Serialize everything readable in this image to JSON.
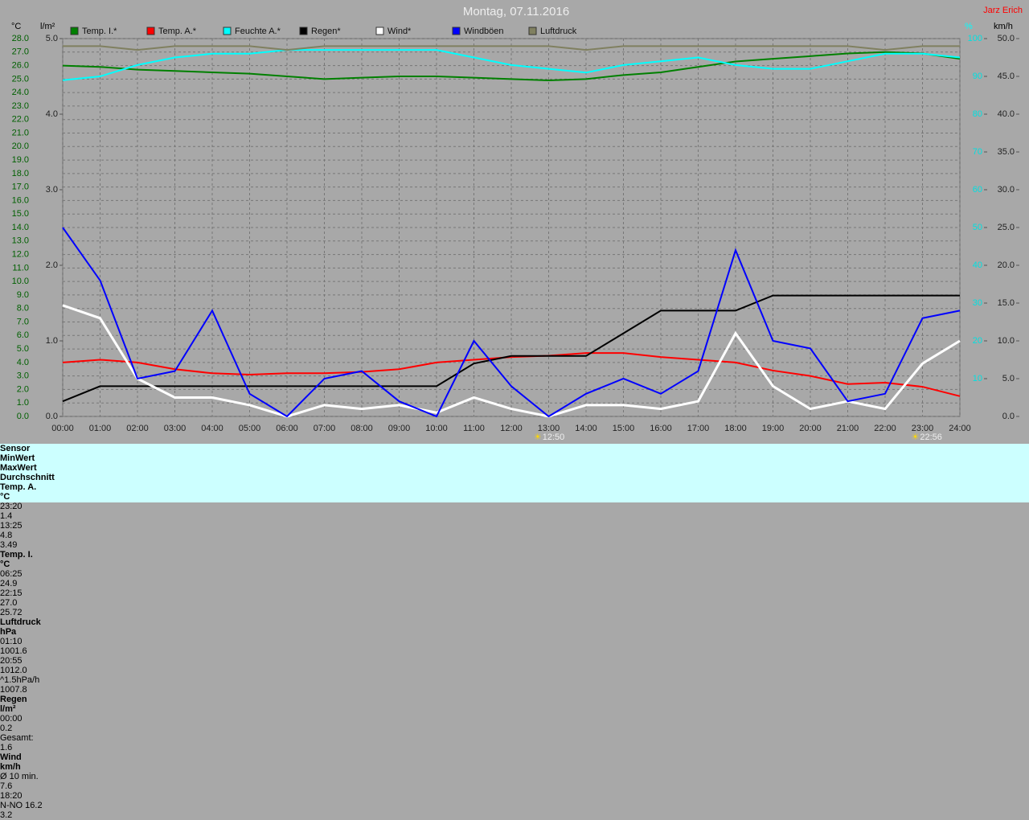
{
  "header": {
    "title": "Montag, 07.11.2016",
    "author": "Jarz Erich"
  },
  "chart_data": {
    "type": "line",
    "x": [
      "00:00",
      "01:00",
      "02:00",
      "03:00",
      "04:00",
      "05:00",
      "06:00",
      "07:00",
      "08:00",
      "09:00",
      "10:00",
      "11:00",
      "12:00",
      "13:00",
      "14:00",
      "15:00",
      "16:00",
      "17:00",
      "18:00",
      "19:00",
      "20:00",
      "21:00",
      "22:00",
      "23:00",
      "24:00"
    ],
    "ylabel": "°C",
    "y3label": "l/m²",
    "y4label": "%",
    "y2label": "km/h",
    "ylim": [
      0,
      28
    ],
    "yticks": [
      {
        "value": 0,
        "label": "0.0"
      },
      {
        "value": 1,
        "label": "1.0"
      },
      {
        "value": 2,
        "label": "2.0"
      },
      {
        "value": 3,
        "label": "3.0"
      },
      {
        "value": 4,
        "label": "4.0"
      },
      {
        "value": 5,
        "label": "5.0"
      },
      {
        "value": 6,
        "label": "6.0"
      },
      {
        "value": 7,
        "label": "7.0"
      },
      {
        "value": 8,
        "label": "8.0"
      },
      {
        "value": 9,
        "label": "9.0"
      },
      {
        "value": 10,
        "label": "10.0"
      },
      {
        "value": 11,
        "label": "11.0"
      },
      {
        "value": 12,
        "label": "12.0"
      },
      {
        "value": 13,
        "label": "13.0"
      },
      {
        "value": 14,
        "label": "14.0"
      },
      {
        "value": 15,
        "label": "15.0"
      },
      {
        "value": 16,
        "label": "16.0"
      },
      {
        "value": 17,
        "label": "17.0"
      },
      {
        "value": 18,
        "label": "18.0"
      },
      {
        "value": 19,
        "label": "19.0"
      },
      {
        "value": 20,
        "label": "20.0"
      },
      {
        "value": 21,
        "label": "21.0"
      },
      {
        "value": 22,
        "label": "22.0"
      },
      {
        "value": 23,
        "label": "23.0"
      },
      {
        "value": 24,
        "label": "24.0"
      },
      {
        "value": 25,
        "label": "25.0"
      },
      {
        "value": 26,
        "label": "26.0"
      },
      {
        "value": 27,
        "label": "27.0"
      },
      {
        "value": 28,
        "label": "28.0"
      }
    ],
    "y3lim": [
      0,
      5
    ],
    "y3ticks": [
      {
        "value": 0,
        "label": "0.0"
      },
      {
        "value": 1,
        "label": "1.0"
      },
      {
        "value": 2,
        "label": "2.0"
      },
      {
        "value": 3,
        "label": "3.0"
      },
      {
        "value": 4,
        "label": "4.0"
      },
      {
        "value": 5,
        "label": "5.0"
      }
    ],
    "y4lim": [
      0,
      100
    ],
    "y4ticks": [
      10,
      20,
      30,
      40,
      50,
      60,
      70,
      80,
      90,
      100
    ],
    "y2lim": [
      0,
      50
    ],
    "y2ticks": [
      {
        "value": 0,
        "label": "0.0"
      },
      {
        "value": 5,
        "label": "5.0"
      },
      {
        "value": 10,
        "label": "10.0"
      },
      {
        "value": 15,
        "label": "15.0"
      },
      {
        "value": 20,
        "label": "20.0"
      },
      {
        "value": 25,
        "label": "25.0"
      },
      {
        "value": 30,
        "label": "30.0"
      },
      {
        "value": 35,
        "label": "35.0"
      },
      {
        "value": 40,
        "label": "40.0"
      },
      {
        "value": 45,
        "label": "45.0"
      },
      {
        "value": 50,
        "label": "50.0"
      }
    ],
    "grid": true,
    "series": [
      {
        "name": "Temp. I.*",
        "color": "#008000",
        "axis": "y",
        "values": [
          26.0,
          25.9,
          25.7,
          25.6,
          25.5,
          25.4,
          25.2,
          25.0,
          25.1,
          25.2,
          25.2,
          25.1,
          25.0,
          24.9,
          25.0,
          25.3,
          25.5,
          25.9,
          26.3,
          26.5,
          26.7,
          26.9,
          27.0,
          26.9,
          26.5
        ]
      },
      {
        "name": "Temp. A.*",
        "color": "#ff0000",
        "axis": "y",
        "values": [
          4.0,
          4.2,
          4.0,
          3.5,
          3.2,
          3.1,
          3.2,
          3.2,
          3.3,
          3.5,
          4.0,
          4.2,
          4.4,
          4.5,
          4.7,
          4.7,
          4.4,
          4.2,
          4.0,
          3.4,
          3.0,
          2.4,
          2.5,
          2.2,
          1.5
        ]
      },
      {
        "name": "Feuchte A.*",
        "color": "#00ffff",
        "axis": "y4",
        "values": [
          89,
          90,
          93,
          95,
          96,
          96,
          97,
          97,
          97,
          97,
          97,
          95,
          93,
          92,
          91,
          93,
          94,
          95,
          93,
          92,
          92,
          94,
          96,
          96,
          95
        ]
      },
      {
        "name": "Regen*",
        "color": "#000000",
        "axis": "y3",
        "values": [
          0.2,
          0.4,
          0.4,
          0.4,
          0.4,
          0.4,
          0.4,
          0.4,
          0.4,
          0.4,
          0.4,
          0.7,
          0.8,
          0.8,
          0.8,
          1.1,
          1.4,
          1.4,
          1.4,
          1.6,
          1.6,
          1.6,
          1.6,
          1.6,
          1.6
        ]
      },
      {
        "name": "Wind*",
        "color": "#ffffff",
        "axis": "y2",
        "values": [
          14.7,
          13,
          5,
          2.5,
          2.5,
          1.5,
          0,
          1.5,
          1,
          1.5,
          0.5,
          2.5,
          1,
          0,
          1.5,
          1.5,
          1,
          2,
          11,
          4,
          1,
          2,
          1,
          7,
          10
        ]
      },
      {
        "name": "Windböen",
        "color": "#0000ff",
        "axis": "y2",
        "values": [
          25,
          18,
          5,
          6,
          14,
          3,
          0,
          5,
          6,
          2,
          0,
          10,
          4,
          0,
          3,
          5,
          3,
          6,
          22,
          10,
          9,
          2,
          3,
          13,
          14
        ]
      },
      {
        "name": "Luftdruck",
        "color": "#808060",
        "axis": "y4",
        "values": [
          98,
          98,
          97,
          98,
          98,
          98,
          97,
          98,
          98,
          98,
          98,
          98,
          98,
          98,
          97,
          98,
          98,
          98,
          98,
          98,
          98,
          98,
          97,
          98,
          98
        ]
      }
    ],
    "annotations": [
      "12:50",
      "22:56"
    ]
  },
  "stats": {
    "sensor": {
      "title": "Sensor",
      "rows": [
        "MinWert",
        "MaxWert",
        "Durchschnitt"
      ]
    },
    "blocks": [
      {
        "title": "Temp. A.",
        "unit": "°C",
        "rows": [
          {
            "time": "23:20",
            "value": "1.4"
          },
          {
            "time": "13:25",
            "value": "4.8"
          },
          {
            "value": "3.49"
          }
        ]
      },
      {
        "title": "Temp. I.",
        "unit": "°C",
        "rows": [
          {
            "time": "06:25",
            "value": "24.9"
          },
          {
            "time": "22:15",
            "value": "27.0"
          },
          {
            "value": "25.72"
          }
        ]
      },
      {
        "title": "Luftdruck",
        "unit": "hPa",
        "rows": [
          {
            "time": "01:10",
            "value": "1001.6"
          },
          {
            "time": "20:55",
            "value": "1012.0"
          },
          {
            "time": "^1.5hPa/h",
            "value": "1007.8"
          }
        ]
      },
      {
        "title": "Regen",
        "unit": "l/m²",
        "rows": [
          {},
          {
            "time": "00:00",
            "value": "0.2"
          },
          {
            "time": "Gesamt:",
            "value": "1.6"
          }
        ]
      },
      {
        "title": "Wind",
        "unit": "km/h",
        "rows": [
          {
            "time": "Ø 10 min.",
            "value": "7.6"
          },
          {
            "time": "18:20",
            "value": "N-NO 16.2"
          },
          {
            "value": "3.2"
          }
        ]
      }
    ]
  }
}
